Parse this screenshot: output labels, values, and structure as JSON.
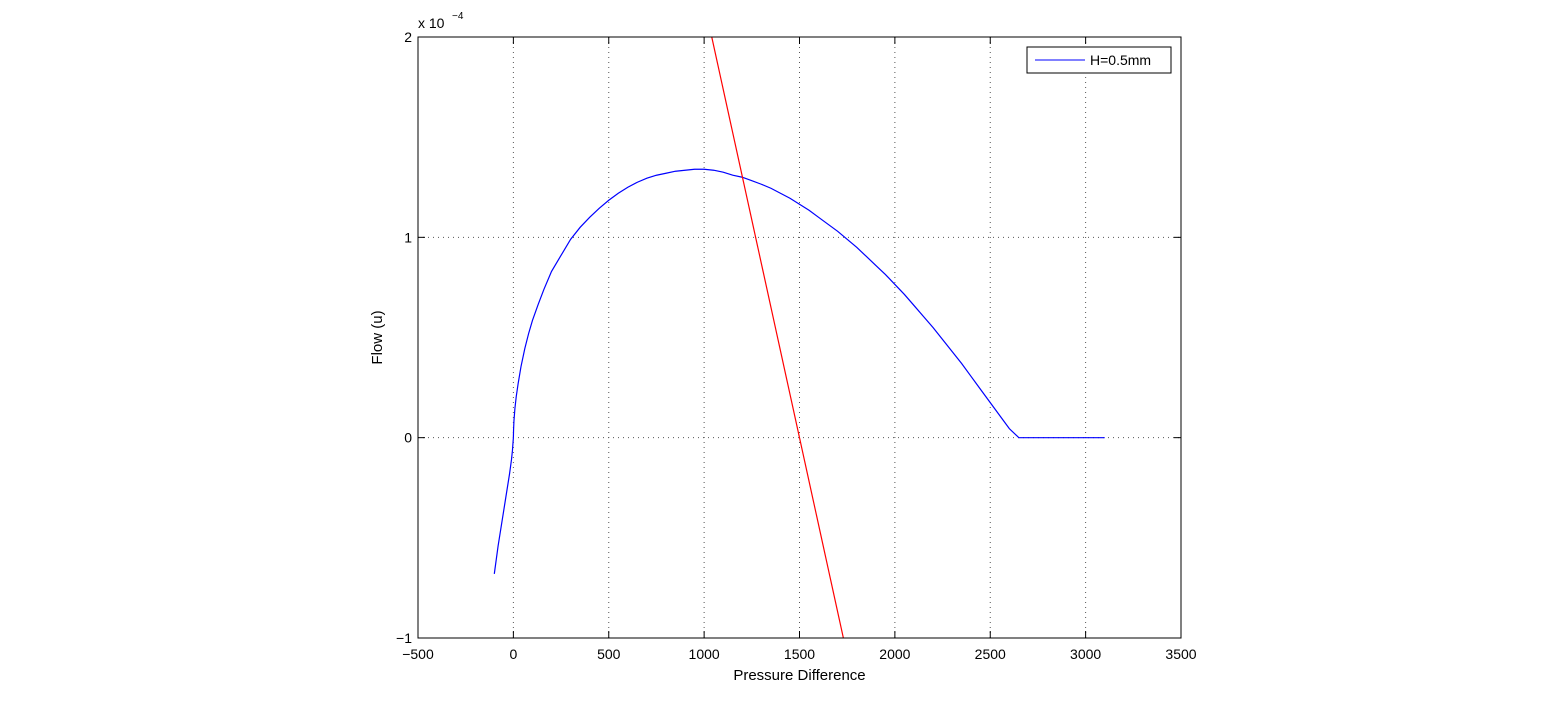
{
  "chart_data": {
    "type": "line",
    "title": "",
    "xlabel": "Pressure Difference",
    "ylabel": "Flow (u)",
    "xlim": [
      -500,
      3500
    ],
    "ylim": [
      -0.0001,
      0.0002
    ],
    "x_ticks": [
      -500,
      0,
      500,
      1000,
      1500,
      2000,
      2500,
      3000,
      3500
    ],
    "x_tick_labels": [
      "−500",
      "0",
      "500",
      "1000",
      "1500",
      "2000",
      "2500",
      "3000",
      "3500"
    ],
    "y_ticks": [
      -0.0001,
      0,
      0.0001,
      0.0002
    ],
    "y_tick_labels": [
      "−1",
      "0",
      "1",
      "2"
    ],
    "y_multiplier": {
      "base": "x 10",
      "exponent": "−4"
    },
    "grid": true,
    "legend": {
      "position": "top-right",
      "entries": [
        "H=0.5mm"
      ]
    },
    "series": [
      {
        "name": "H=0.5mm",
        "color": "#0000ff",
        "x": [
          -100,
          -80,
          -60,
          -40,
          -20,
          -10,
          -5,
          -2,
          0,
          1,
          3,
          8,
          15,
          25,
          40,
          60,
          80,
          100,
          130,
          160,
          200,
          250,
          300,
          350,
          400,
          450,
          500,
          550,
          600,
          650,
          700,
          750,
          800,
          850,
          900,
          950,
          1000,
          1050,
          1100,
          1150,
          1200,
          1250,
          1300,
          1350,
          1400,
          1450,
          1500,
          1550,
          1600,
          1650,
          1700,
          1750,
          1800,
          1850,
          1900,
          1950,
          2000,
          2050,
          2100,
          2150,
          2200,
          2250,
          2300,
          2350,
          2400,
          2450,
          2500,
          2550,
          2600,
          2650,
          2700,
          2750,
          2800,
          2850,
          2900,
          3000,
          3100
        ],
        "y": [
          -6.8e-05,
          -5.4e-05,
          -4.2e-05,
          -3e-05,
          -1.8e-05,
          -1.1e-05,
          -6.5e-06,
          -2.6e-06,
          0,
          4e-06,
          8.4e-06,
          1.45e-05,
          2.05e-05,
          2.7e-05,
          3.55e-05,
          4.45e-05,
          5.2e-05,
          5.85e-05,
          6.65e-05,
          7.4e-05,
          8.3e-05,
          9.1e-05,
          9.9e-05,
          0.000105,
          0.00011,
          0.0001145,
          0.0001185,
          0.000122,
          0.000125,
          0.0001275,
          0.0001295,
          0.000131,
          0.000132,
          0.000133,
          0.0001335,
          0.000134,
          0.000134,
          0.0001335,
          0.0001325,
          0.000131,
          0.00013,
          0.0001283,
          0.0001265,
          0.0001245,
          0.000122,
          0.0001195,
          0.0001165,
          0.0001135,
          0.00011,
          0.0001065,
          0.000103,
          9.9e-05,
          9.5e-05,
          9.05e-05,
          8.6e-05,
          8.15e-05,
          7.65e-05,
          7.15e-05,
          6.6e-05,
          6.05e-05,
          5.5e-05,
          4.9e-05,
          4.3e-05,
          3.7e-05,
          3.05e-05,
          2.4e-05,
          1.75e-05,
          1.1e-05,
          4.5e-06,
          0,
          0,
          0,
          0,
          0,
          0,
          0,
          0
        ]
      },
      {
        "color": "#ff0000",
        "x": [
          1040,
          1730
        ],
        "y": [
          0.0002,
          -0.0001
        ]
      }
    ]
  }
}
